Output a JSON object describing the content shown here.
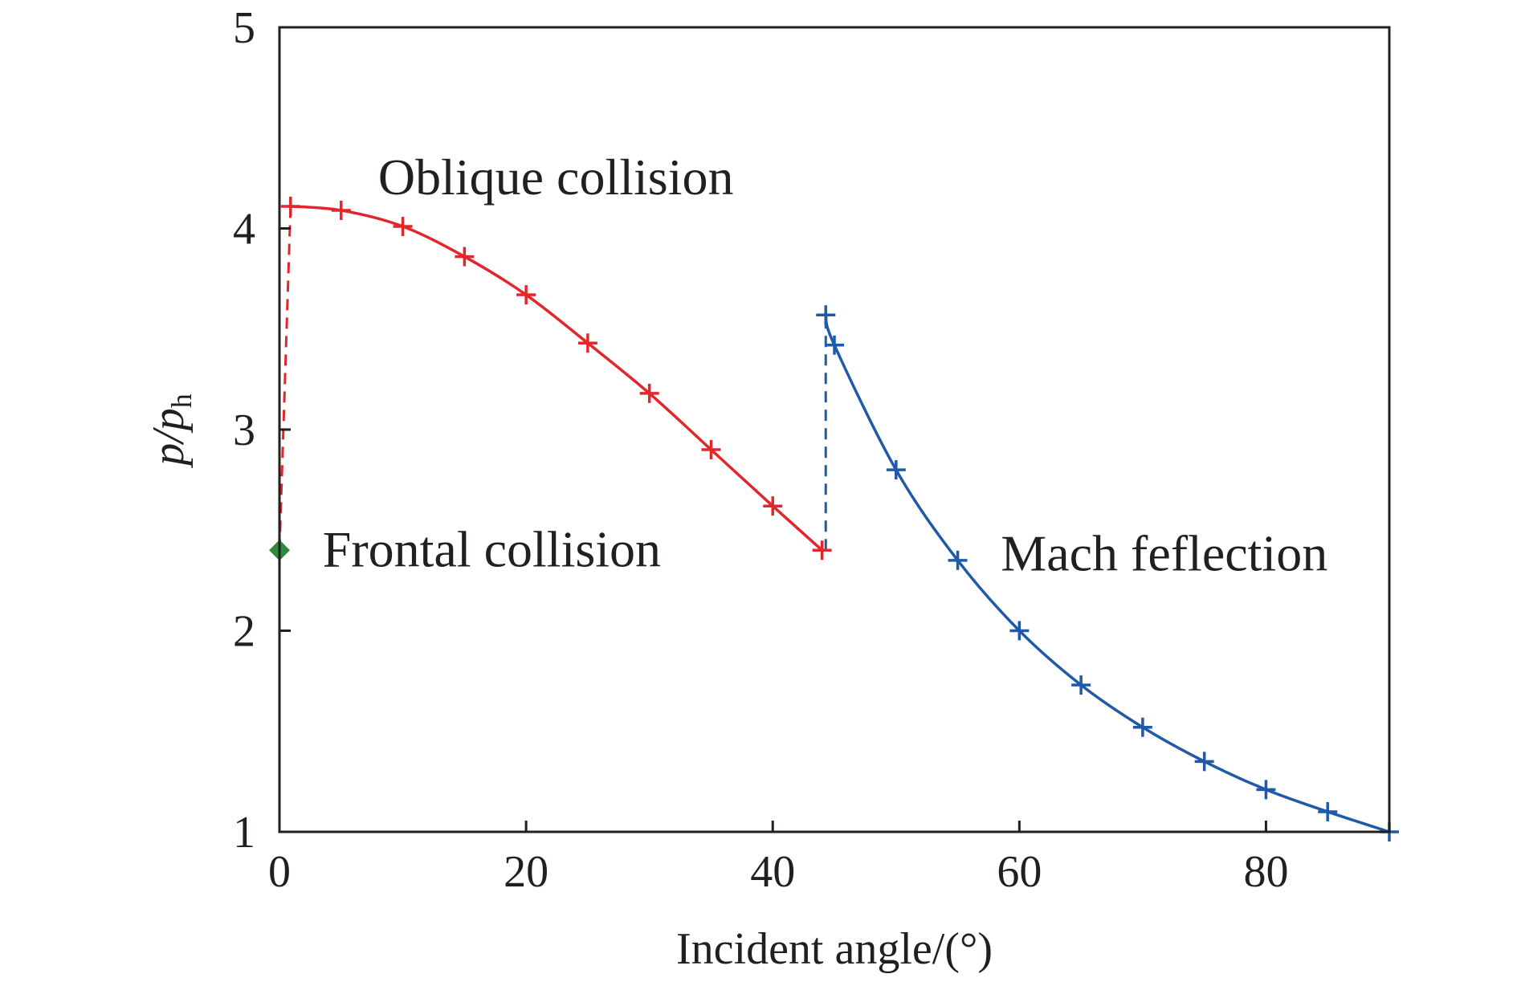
{
  "chart_data": {
    "type": "line",
    "xlabel": "Incident angle/(°)",
    "ylabel": {
      "main": "p/p",
      "sub": "h"
    },
    "xlim": [
      0,
      90
    ],
    "ylim": [
      1,
      5
    ],
    "xticks": [
      0,
      20,
      40,
      60,
      80
    ],
    "yticks": [
      1,
      2,
      3,
      4,
      5
    ],
    "grid": false,
    "colors": {
      "oblique": "#e3262b",
      "mach": "#1f5aa8",
      "frontal": "#2e8b3e",
      "axis": "#231f20"
    },
    "annotations": [
      {
        "id": "oblique",
        "text": "Oblique collision",
        "x": 8,
        "y": 4.17
      },
      {
        "id": "frontal",
        "text": "Frontal collision",
        "x": 3.5,
        "y": 2.32
      },
      {
        "id": "mach",
        "text": "Mach feflection",
        "x": 58.5,
        "y": 2.3
      }
    ],
    "series": [
      {
        "id": "oblique",
        "color": "#e3262b",
        "x": [
          0.9,
          5,
          10,
          15,
          20,
          25,
          30,
          35,
          40,
          44
        ],
        "y": [
          4.11,
          4.09,
          4.01,
          3.86,
          3.67,
          3.43,
          3.18,
          2.9,
          2.62,
          2.4
        ]
      },
      {
        "id": "mach",
        "color": "#1f5aa8",
        "x": [
          44.3,
          45,
          50,
          55,
          60,
          65,
          70,
          75,
          80,
          85,
          90
        ],
        "y": [
          3.57,
          3.42,
          2.8,
          2.35,
          2.0,
          1.73,
          1.52,
          1.35,
          1.21,
          1.1,
          1.0
        ]
      }
    ],
    "transitions": [
      {
        "id": "oblique-jump",
        "color": "#e3262b",
        "x": [
          0,
          0.9
        ],
        "y": [
          2.4,
          4.11
        ]
      },
      {
        "id": "mach-jump",
        "color": "#1f5aa8",
        "x": [
          44.3,
          44.3
        ],
        "y": [
          2.4,
          3.57
        ]
      }
    ],
    "frontal_point": {
      "x": 0,
      "y": 2.4,
      "color": "#2e8b3e"
    }
  }
}
